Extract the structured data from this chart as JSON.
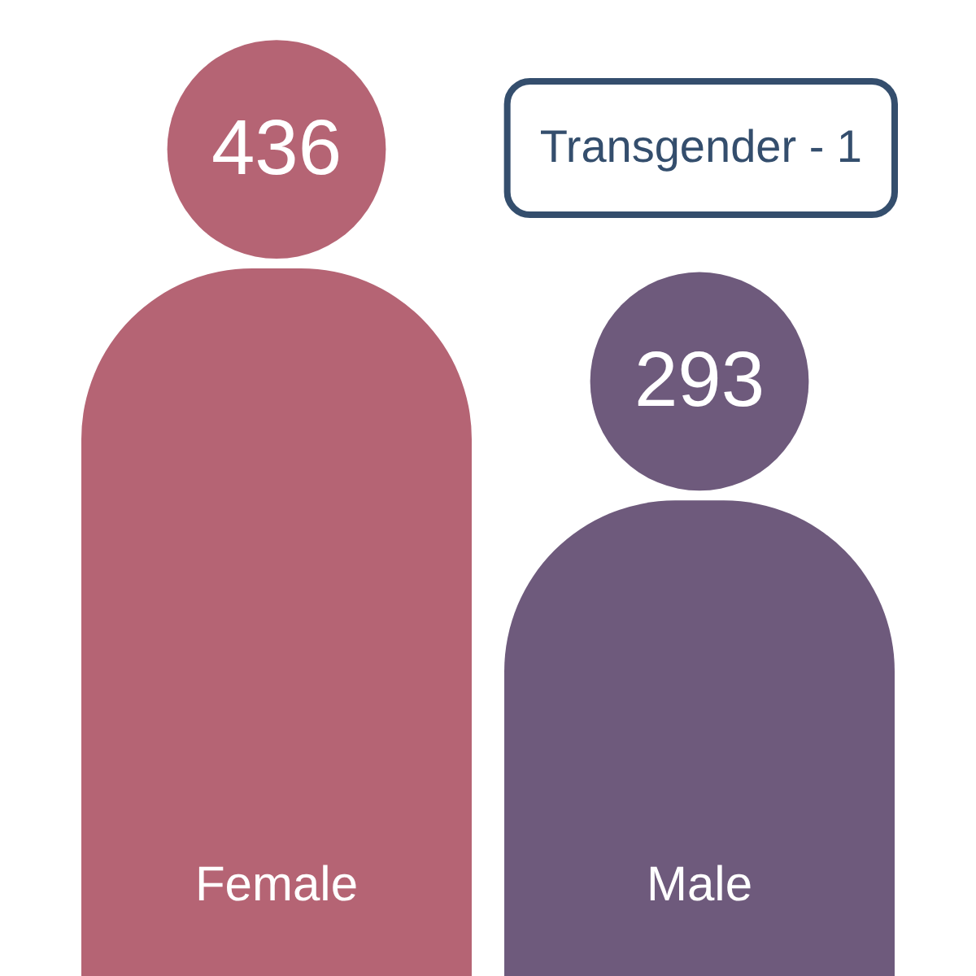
{
  "chart_data": {
    "type": "bar",
    "categories": [
      "Female",
      "Male"
    ],
    "values": [
      436,
      293
    ],
    "colors": [
      "#b56474",
      "#6e5a7c"
    ],
    "data_labels": true,
    "tick_labels": "x",
    "annotations": [
      "Transgender - 1"
    ]
  }
}
